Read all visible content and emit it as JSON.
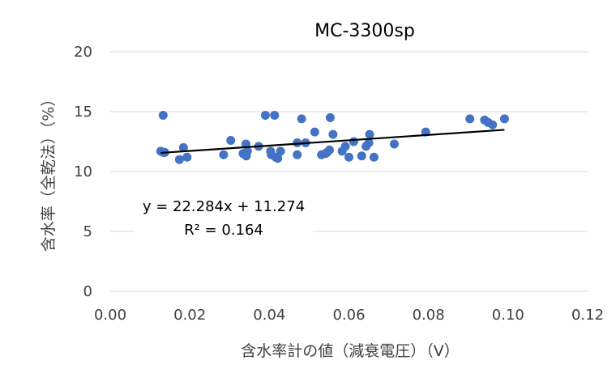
{
  "chart_data": {
    "type": "scatter",
    "title": "MC-3300sp",
    "xlabel": "含水率計の値（減衰電圧）（V）",
    "ylabel": "含水率（全乾法）（%）",
    "xlim": [
      0,
      0.12
    ],
    "ylim": [
      0,
      20
    ],
    "xticks": [
      0,
      0.02,
      0.04,
      0.06,
      0.08,
      0.1,
      0.12
    ],
    "xtick_labels": [
      "0.00",
      "0.02",
      "0.04",
      "0.06",
      "0.08",
      "0.10",
      "0.12"
    ],
    "yticks": [
      0,
      5,
      10,
      15,
      20
    ],
    "ytick_labels": [
      "0",
      "5",
      "10",
      "15",
      "20"
    ],
    "grid": "horizontal",
    "marker_color": "#4472c4",
    "trendline_color": "#000000",
    "series": [
      {
        "name": "MC-3300sp",
        "points": [
          [
            0.0127,
            11.7
          ],
          [
            0.0133,
            11.6
          ],
          [
            0.0133,
            14.7
          ],
          [
            0.0137,
            11.6
          ],
          [
            0.0174,
            11.0
          ],
          [
            0.0184,
            12.0
          ],
          [
            0.0193,
            11.2
          ],
          [
            0.0285,
            11.4
          ],
          [
            0.0303,
            12.6
          ],
          [
            0.0334,
            11.5
          ],
          [
            0.0341,
            12.3
          ],
          [
            0.0342,
            11.3
          ],
          [
            0.0345,
            11.7
          ],
          [
            0.0373,
            12.1
          ],
          [
            0.039,
            14.7
          ],
          [
            0.0403,
            11.7
          ],
          [
            0.0405,
            11.4
          ],
          [
            0.0413,
            14.7
          ],
          [
            0.0416,
            11.2
          ],
          [
            0.0421,
            11.1
          ],
          [
            0.0428,
            11.7
          ],
          [
            0.047,
            12.4
          ],
          [
            0.047,
            11.4
          ],
          [
            0.0481,
            14.4
          ],
          [
            0.0491,
            12.4
          ],
          [
            0.0514,
            13.3
          ],
          [
            0.0531,
            11.4
          ],
          [
            0.0541,
            11.5
          ],
          [
            0.0545,
            11.6
          ],
          [
            0.0551,
            11.8
          ],
          [
            0.0553,
            14.5
          ],
          [
            0.056,
            13.1
          ],
          [
            0.0583,
            11.7
          ],
          [
            0.0591,
            12.1
          ],
          [
            0.06,
            11.2
          ],
          [
            0.0612,
            12.5
          ],
          [
            0.0632,
            11.3
          ],
          [
            0.0643,
            12.1
          ],
          [
            0.065,
            12.4
          ],
          [
            0.0652,
            13.1
          ],
          [
            0.0663,
            11.2
          ],
          [
            0.0714,
            12.3
          ],
          [
            0.0793,
            13.3
          ],
          [
            0.0904,
            14.4
          ],
          [
            0.0941,
            14.3
          ],
          [
            0.095,
            14.1
          ],
          [
            0.0961,
            13.9
          ],
          [
            0.0991,
            14.4
          ]
        ]
      }
    ],
    "trendline": {
      "slope": 22.284,
      "intercept": 11.274,
      "x_range": [
        0.0127,
        0.0991
      ],
      "equation": "y = 22.284x + 11.274",
      "r2": "R² = 0.164"
    }
  }
}
